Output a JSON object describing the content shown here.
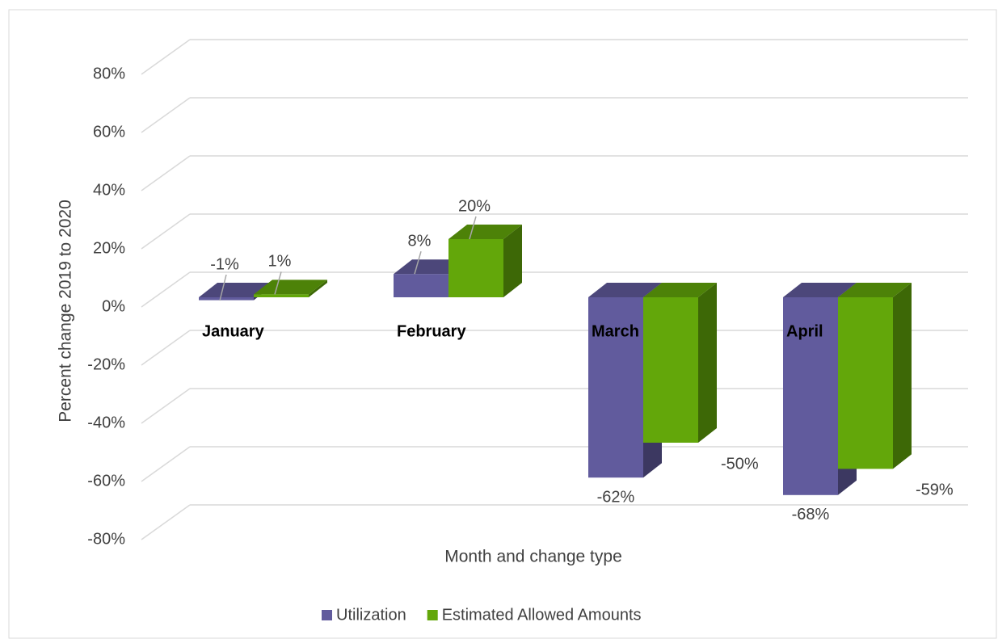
{
  "chart_data": {
    "type": "bar3d",
    "x_label": "Month and change type",
    "y_label": "Percent change 2019 to 2020",
    "categories": [
      "January",
      "February",
      "March",
      "April"
    ],
    "series": [
      {
        "name": "Utilization",
        "color": "#615b9d",
        "values": [
          -1,
          8,
          -62,
          -68
        ],
        "value_labels": [
          "-1%",
          "8%",
          "-62%",
          "-68%"
        ]
      },
      {
        "name": "Estimated Allowed Amounts",
        "color": "#63a70a",
        "values": [
          1,
          20,
          -50,
          -59
        ],
        "value_labels": [
          "1%",
          "20%",
          "-50%",
          "-59%"
        ]
      }
    ],
    "ylim": [
      -80,
      80
    ],
    "yticks": [
      {
        "value": -80,
        "label": "-80%"
      },
      {
        "value": -60,
        "label": "-60%"
      },
      {
        "value": -40,
        "label": "-40%"
      },
      {
        "value": -20,
        "label": "-20%"
      },
      {
        "value": 0,
        "label": "0%"
      },
      {
        "value": 20,
        "label": "20%"
      },
      {
        "value": 40,
        "label": "40%"
      },
      {
        "value": 60,
        "label": "60%"
      },
      {
        "value": 80,
        "label": "80%"
      }
    ],
    "grid": true,
    "legend": "bottom"
  }
}
